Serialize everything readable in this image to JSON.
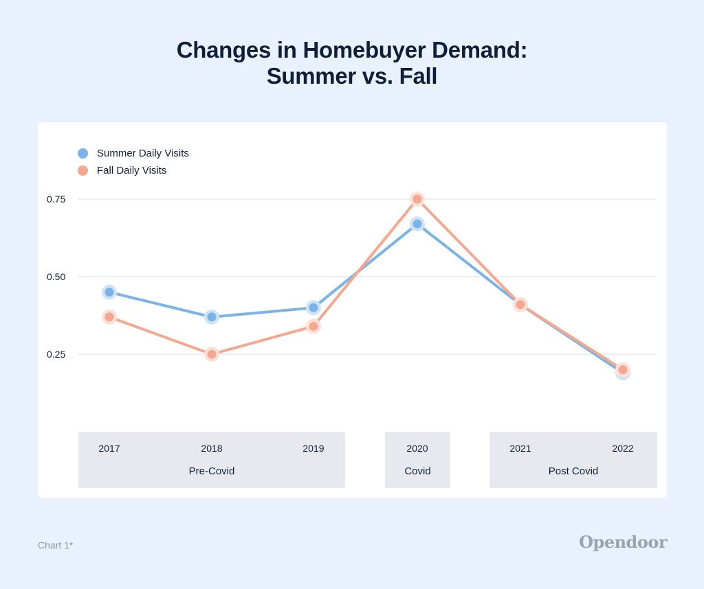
{
  "header": {
    "title_line1": "Changes in Homebuyer Demand:",
    "title_line2": "Summer vs. Fall"
  },
  "legend": {
    "summer_label": "Summer Daily Visits",
    "fall_label": "Fall Daily Visits"
  },
  "footer": {
    "footnote": "Chart 1*",
    "brand": "Opendoor"
  },
  "colors": {
    "summer": "#7ab3e8",
    "fall": "#f5a88f",
    "summer_halo": "#cfe3f7",
    "fall_halo": "#fde1d8",
    "group_bg": "#e7e9ee",
    "grid": "#d8dde4"
  },
  "chart_data": {
    "type": "line",
    "title": "Changes in Homebuyer Demand: Summer vs. Fall",
    "categories": [
      "2017",
      "2018",
      "2019",
      "2020",
      "2021",
      "2022"
    ],
    "groups": [
      {
        "label": "Pre-Covid",
        "categories": [
          "2017",
          "2018",
          "2019"
        ]
      },
      {
        "label": "Covid",
        "categories": [
          "2020"
        ]
      },
      {
        "label": "Post Covid",
        "categories": [
          "2021",
          "2022"
        ]
      }
    ],
    "series": [
      {
        "name": "Summer Daily Visits",
        "values": [
          0.45,
          0.37,
          0.4,
          0.67,
          0.41,
          0.19
        ]
      },
      {
        "name": "Fall Daily Visits",
        "values": [
          0.37,
          0.25,
          0.34,
          0.75,
          0.41,
          0.2
        ]
      }
    ],
    "yticks": [
      "0.25",
      "0.50",
      "0.75"
    ],
    "ylim": [
      0.0,
      0.75
    ],
    "grid": true,
    "legend_position": "top-left"
  }
}
